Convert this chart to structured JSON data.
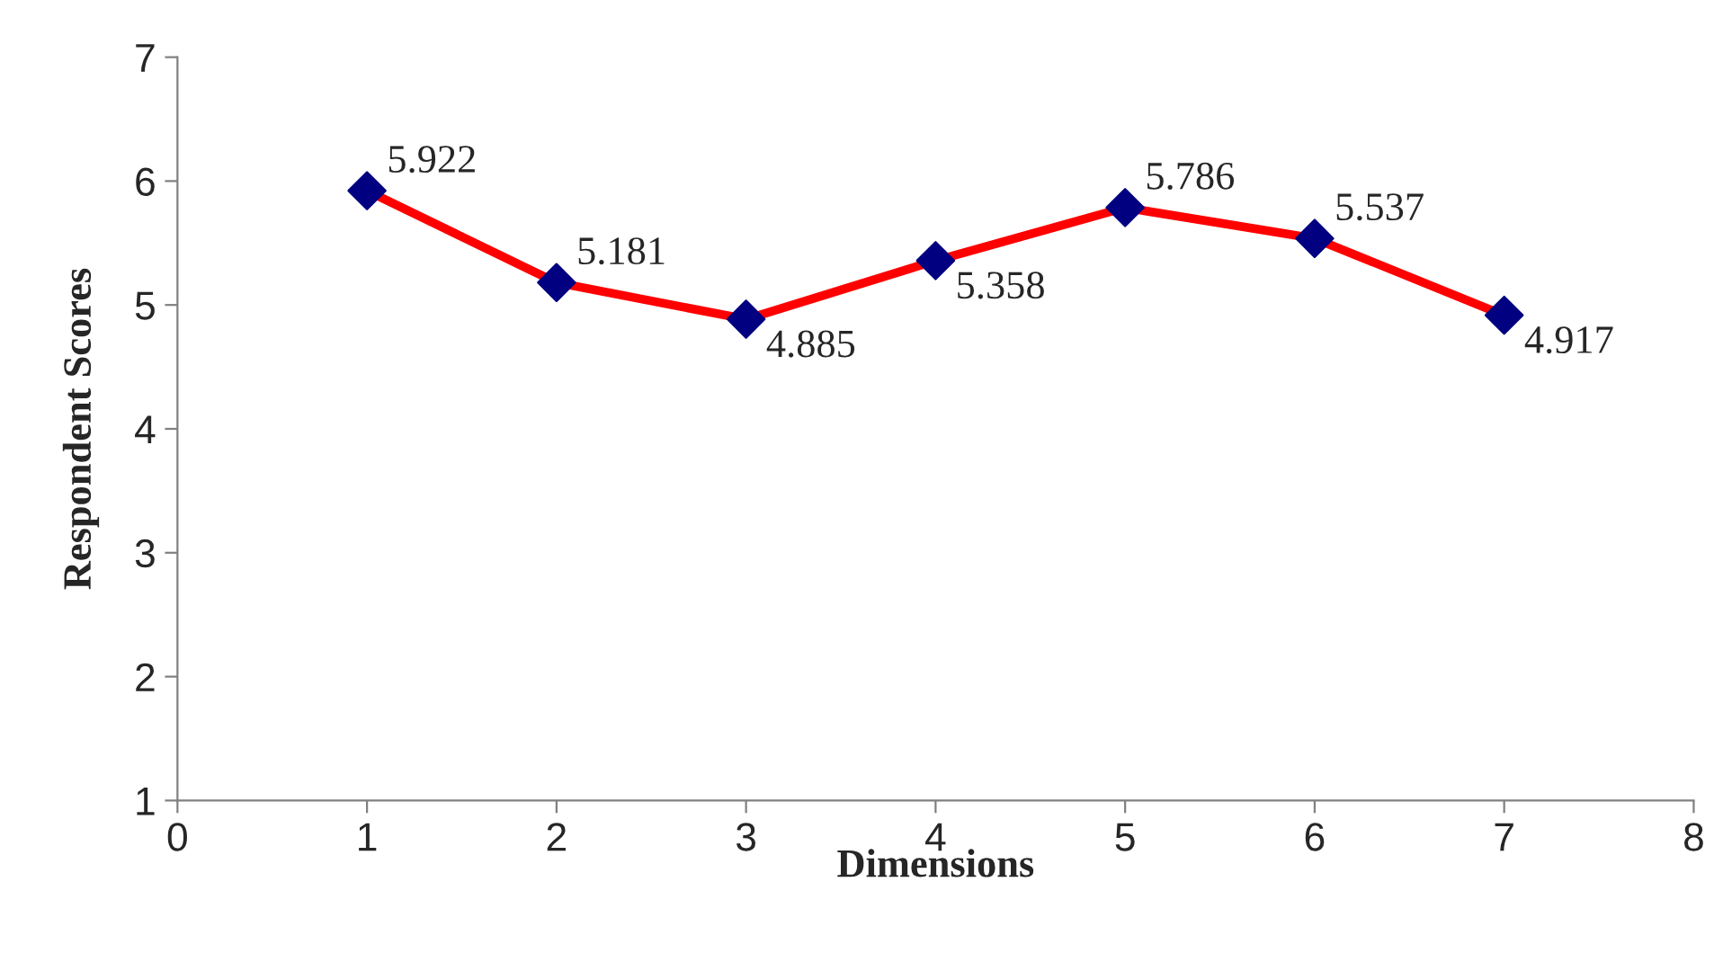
{
  "chart_data": {
    "type": "line",
    "xlabel": "Dimensions",
    "ylabel": "Respondent Scores",
    "x": [
      1,
      2,
      3,
      4,
      5,
      6,
      7
    ],
    "series": [
      {
        "color": "#ff0000",
        "colors": [
          "#000080",
          "#000080",
          "#000080",
          "#000080",
          "#000080",
          "#000080",
          "#000080"
        ],
        "values": [
          5.922,
          5.181,
          4.885,
          5.358,
          5.786,
          5.537,
          4.917
        ]
      }
    ],
    "xlim": [
      0,
      8
    ],
    "xticks": [
      0,
      1,
      2,
      3,
      4,
      5,
      6,
      7,
      8
    ],
    "ylim": [
      1,
      7
    ],
    "yticks": [
      1,
      2,
      3,
      4,
      5,
      6,
      7
    ],
    "data_labels": true,
    "grid": false,
    "legend": false,
    "marker": "diamond",
    "line_style": "solid"
  }
}
